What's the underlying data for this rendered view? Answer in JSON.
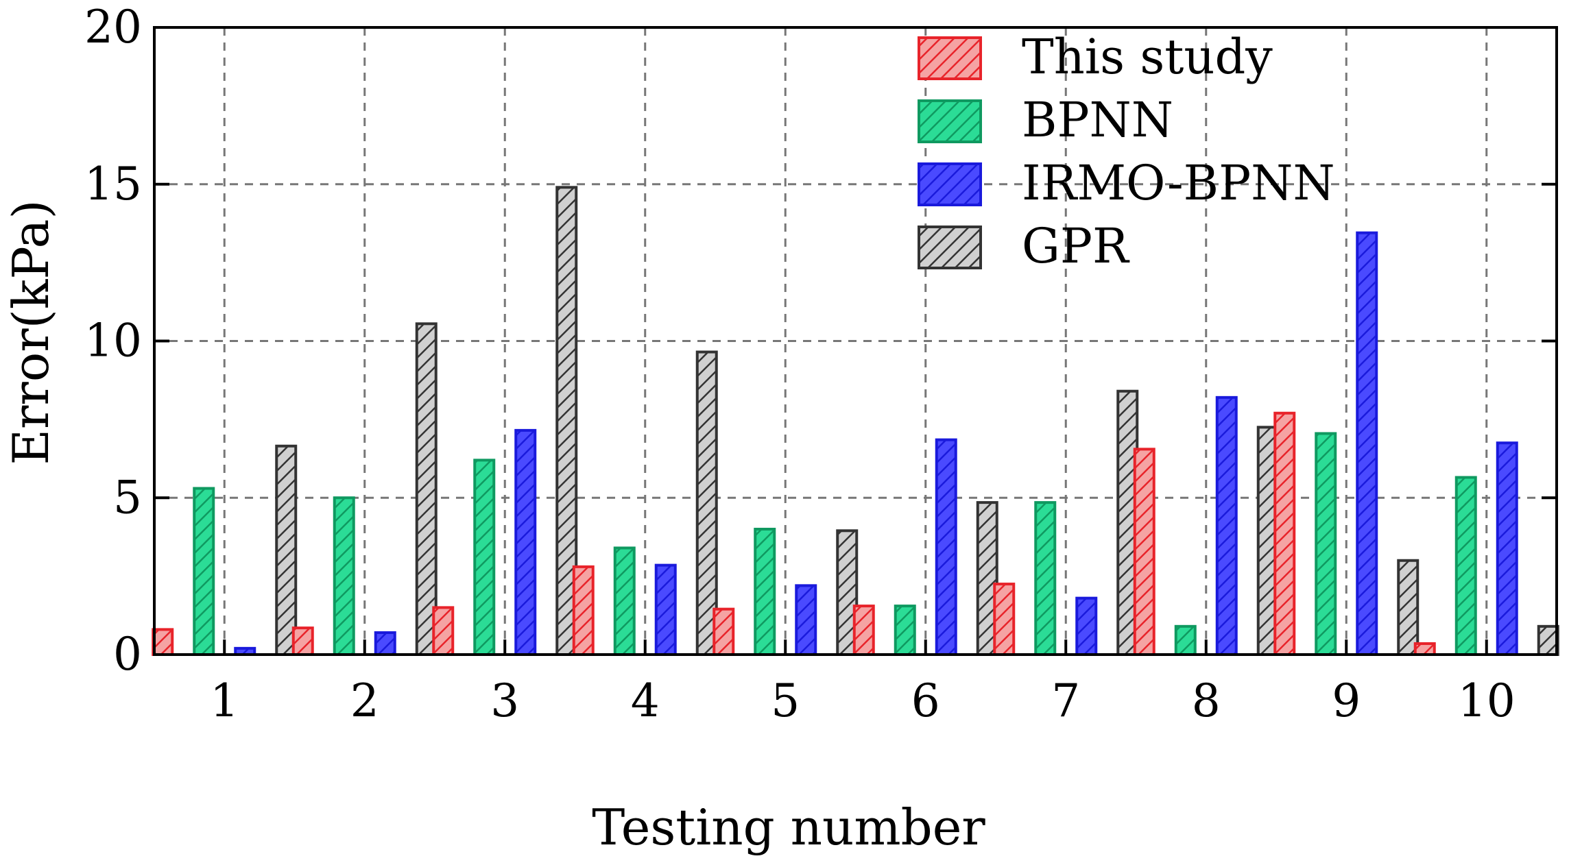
{
  "chart_data": {
    "type": "bar",
    "title": "",
    "xlabel": "Testing number",
    "ylabel": "Error(kPa)",
    "ylim": [
      0,
      20
    ],
    "yticks": [
      0,
      5,
      10,
      15,
      20
    ],
    "grid": true,
    "legend_position": "top-right",
    "categories": [
      "1",
      "2",
      "3",
      "4",
      "5",
      "6",
      "7",
      "8",
      "9",
      "10"
    ],
    "series": [
      {
        "name": "This study",
        "color": "#e8232a",
        "fill": "#f5a3a3",
        "values": [
          0.8,
          0.85,
          1.5,
          2.8,
          1.45,
          1.55,
          2.25,
          6.55,
          7.7,
          0.35
        ]
      },
      {
        "name": "BPNN",
        "color": "#0f9960",
        "fill": "#2bdc96",
        "values": [
          5.3,
          5.0,
          6.2,
          3.4,
          4.0,
          1.55,
          4.85,
          0.9,
          7.05,
          5.65
        ]
      },
      {
        "name": "IRMO-BPNN",
        "color": "#1a1adc",
        "fill": "#4a4aff",
        "values": [
          0.2,
          0.7,
          7.15,
          2.85,
          2.2,
          6.85,
          1.8,
          8.2,
          13.45,
          6.75
        ]
      },
      {
        "name": "GPR",
        "color": "#333333",
        "fill": "#d0d0d0",
        "values": [
          6.65,
          10.55,
          14.9,
          9.65,
          3.95,
          4.85,
          8.4,
          7.25,
          3.0,
          0.9
        ]
      }
    ]
  }
}
